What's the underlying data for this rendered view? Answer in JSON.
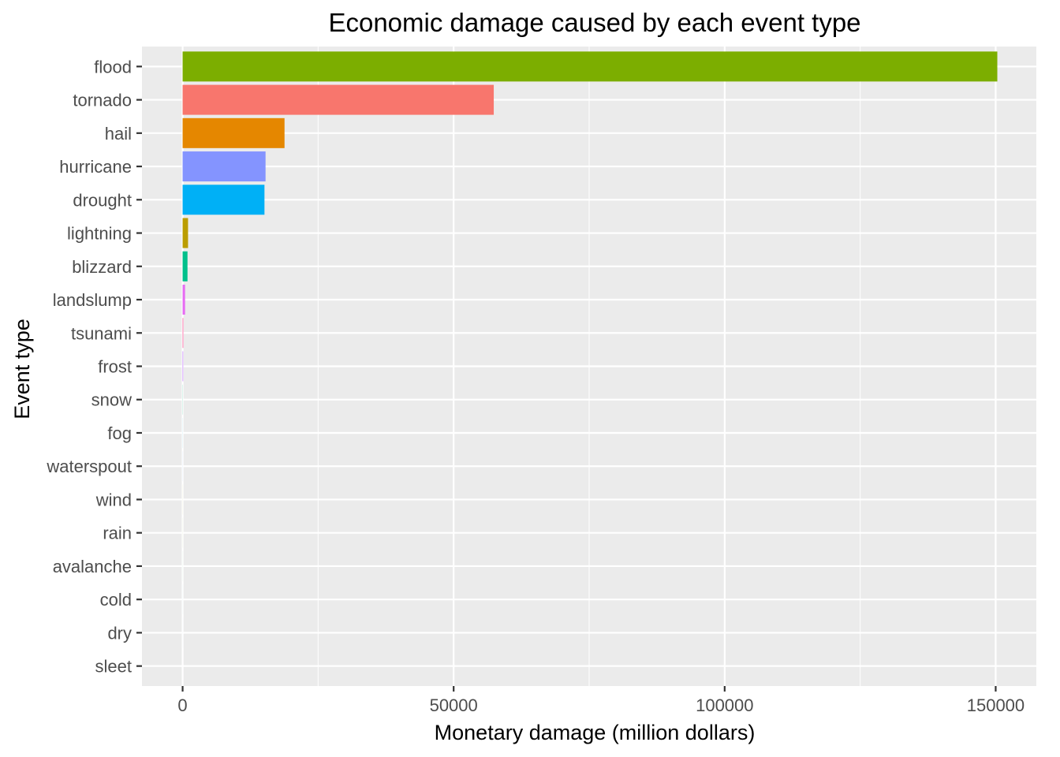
{
  "chart_data": {
    "type": "bar",
    "orientation": "horizontal",
    "title": "Economic damage caused by each event type",
    "xlabel": "Monetary damage (million dollars)",
    "ylabel": "Event type",
    "xlim": [
      -7500,
      157500
    ],
    "x_ticks": [
      0,
      50000,
      100000,
      150000
    ],
    "x_tick_labels": [
      "0",
      "50000",
      "100000",
      "150000"
    ],
    "grid": true,
    "legend": "none",
    "categories": [
      "flood",
      "tornado",
      "hail",
      "hurricane",
      "drought",
      "lightning",
      "blizzard",
      "landslump",
      "tsunami",
      "frost",
      "snow",
      "fog",
      "waterspout",
      "wind",
      "rain",
      "avalanche",
      "cold",
      "dry",
      "sleet"
    ],
    "values": [
      150300,
      57400,
      18800,
      15300,
      15100,
      1000,
      900,
      450,
      120,
      100,
      20,
      10,
      8,
      6,
      5,
      4,
      3,
      2,
      1
    ],
    "colors": [
      "#7CAE00",
      "#F8766D",
      "#E58700",
      "#8494FF",
      "#00B0F6",
      "#BB9D00",
      "#00C08B",
      "#E76BF3",
      "#FF67A4",
      "#C77CFF",
      "#00BF7D",
      "#00BCD8",
      "#619CFF",
      "#A3A500",
      "#6BB100",
      "#00BA38",
      "#00C1A3",
      "#35A2FF",
      "#FD61D1"
    ]
  }
}
